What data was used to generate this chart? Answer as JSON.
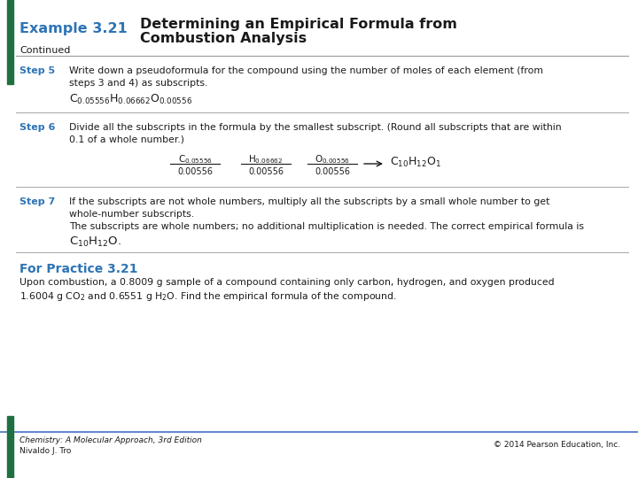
{
  "title_prefix": "Example 3.21",
  "title_main_line1": "Determining an Empirical Formula from",
  "title_main_line2": "Combustion Analysis",
  "continued": "Continued",
  "step5_label": "Step 5",
  "step5_text1": "Write down a pseudoformula for the compound using the number of moles of each element (from",
  "step5_text2": "steps 3 and 4) as subscripts.",
  "step6_label": "Step 6",
  "step6_text1": "Divide all the subscripts in the formula by the smallest subscript. (Round all subscripts that are within",
  "step6_text2": "0.1 of a whole number.)",
  "step7_label": "Step 7",
  "step7_text1": "If the subscripts are not whole numbers, multiply all the subscripts by a small whole number to get",
  "step7_text2": "whole-number subscripts.",
  "step7_text3": "The subscripts are whole numbers; no additional multiplication is needed. The correct empirical formula is",
  "practice_label": "For Practice 3.21",
  "practice_text1": "Upon combustion, a 0.8009 g sample of a compound containing only carbon, hydrogen, and oxygen produced",
  "practice_text2_pre": "1.6004 g CO",
  "practice_text2_mid": " and 0.6551 g H",
  "practice_text2_post": "O. Find the empirical formula of the compound.",
  "footer_left1": "Chemistry: A Molecular Approach, 3rd Edition",
  "footer_left2": "Nivaldo J. Tro",
  "footer_right": "© 2014 Pearson Education, Inc.",
  "color_blue": "#2E74B5",
  "color_green": "#1F7040",
  "color_dark": "#1a1a1a",
  "bg_color": "#ffffff",
  "border_color": "#1F7040",
  "separator_color": "#999999",
  "footer_line_color": "#4472C4"
}
